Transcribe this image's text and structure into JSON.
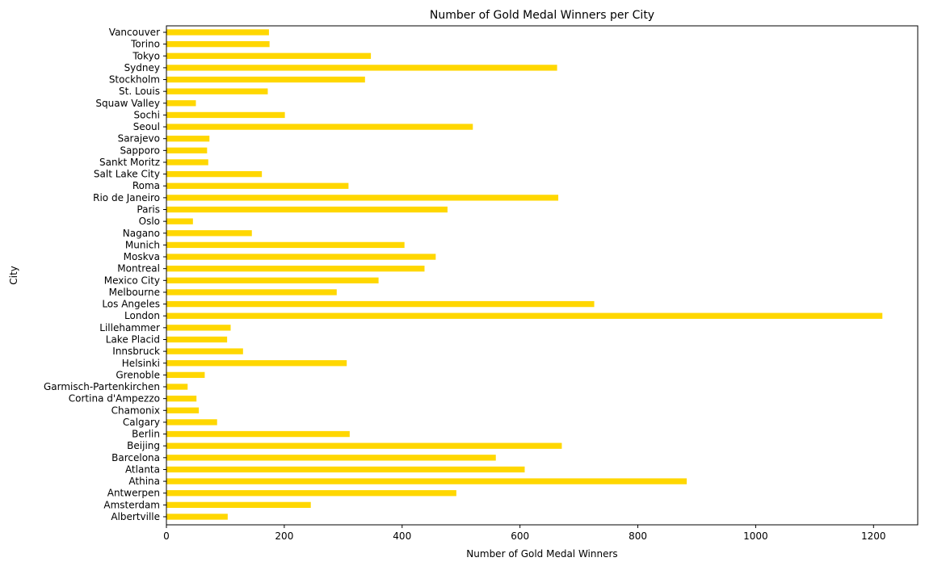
{
  "chart_data": {
    "type": "bar",
    "orientation": "horizontal",
    "title": "Number of Gold Medal Winners per City",
    "xlabel": "Number of Gold Medal Winners",
    "ylabel": "City",
    "xlim": [
      0,
      1275
    ],
    "xticks": [
      0,
      200,
      400,
      600,
      800,
      1000,
      1200
    ],
    "grid": false,
    "bar_color": "#FFD700",
    "categories": [
      "Albertville",
      "Amsterdam",
      "Antwerpen",
      "Athina",
      "Atlanta",
      "Barcelona",
      "Beijing",
      "Berlin",
      "Calgary",
      "Chamonix",
      "Cortina d'Ampezzo",
      "Garmisch-Partenkirchen",
      "Grenoble",
      "Helsinki",
      "Innsbruck",
      "Lake Placid",
      "Lillehammer",
      "London",
      "Los Angeles",
      "Melbourne",
      "Mexico City",
      "Montreal",
      "Moskva",
      "Munich",
      "Nagano",
      "Oslo",
      "Paris",
      "Rio de Janeiro",
      "Roma",
      "Salt Lake City",
      "Sankt Moritz",
      "Sapporo",
      "Sarajevo",
      "Seoul",
      "Sochi",
      "Squaw Valley",
      "St. Louis",
      "Stockholm",
      "Sydney",
      "Tokyo",
      "Torino",
      "Vancouver"
    ],
    "values": [
      104,
      245,
      492,
      883,
      608,
      559,
      671,
      311,
      86,
      55,
      51,
      36,
      65,
      306,
      130,
      103,
      109,
      1215,
      726,
      289,
      360,
      438,
      457,
      404,
      145,
      45,
      477,
      665,
      309,
      162,
      71,
      69,
      73,
      520,
      201,
      50,
      172,
      337,
      663,
      347,
      175,
      174
    ]
  }
}
